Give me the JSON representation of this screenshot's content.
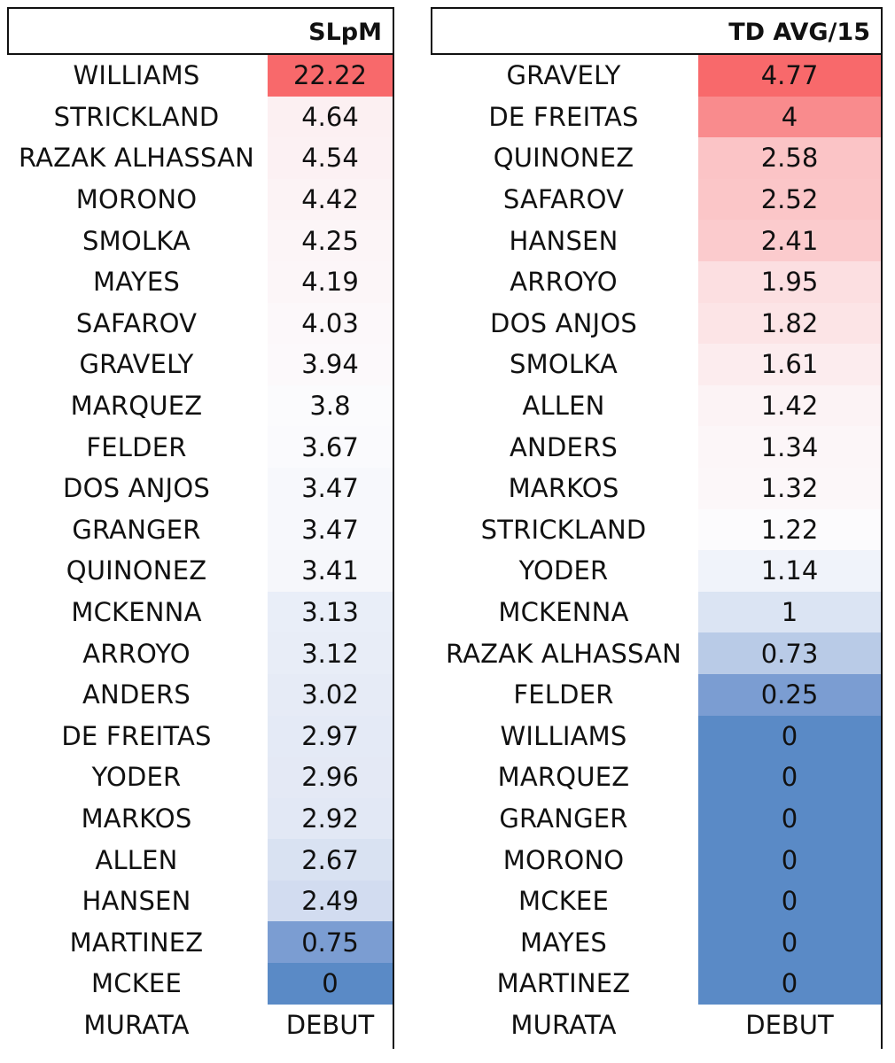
{
  "left_table": {
    "header": "SLpM",
    "rows": [
      {
        "name": "WILLIAMS",
        "value": "22.22",
        "color": "#f8696b"
      },
      {
        "name": "STRICKLAND",
        "value": "4.64",
        "color": "#fcf0f2"
      },
      {
        "name": "RAZAK ALHASSAN",
        "value": "4.54",
        "color": "#fcf1f3"
      },
      {
        "name": "MORONO",
        "value": "4.42",
        "color": "#fcf3f5"
      },
      {
        "name": "SMOLKA",
        "value": "4.25",
        "color": "#fcf5f7"
      },
      {
        "name": "MAYES",
        "value": "4.19",
        "color": "#fcf6f8"
      },
      {
        "name": "SAFAROV",
        "value": "4.03",
        "color": "#fcf8fa"
      },
      {
        "name": "GRAVELY",
        "value": "3.94",
        "color": "#fcf9fb"
      },
      {
        "name": "MARQUEZ",
        "value": "3.8",
        "color": "#fbfbfd"
      },
      {
        "name": "FELDER",
        "value": "3.67",
        "color": "#fafafd"
      },
      {
        "name": "DOS ANJOS",
        "value": "3.47",
        "color": "#f7f8fc"
      },
      {
        "name": "GRANGER",
        "value": "3.47",
        "color": "#f7f8fc"
      },
      {
        "name": "QUINONEZ",
        "value": "3.41",
        "color": "#f6f7fb"
      },
      {
        "name": "MCKENNA",
        "value": "3.13",
        "color": "#e9eef8"
      },
      {
        "name": "ARROYO",
        "value": "3.12",
        "color": "#e8edf7"
      },
      {
        "name": "ANDERS",
        "value": "3.02",
        "color": "#e6ebf6"
      },
      {
        "name": "DE FREITAS",
        "value": "2.97",
        "color": "#e4eaf6"
      },
      {
        "name": "YODER",
        "value": "2.96",
        "color": "#e4e9f5"
      },
      {
        "name": "MARKOS",
        "value": "2.92",
        "color": "#e2e8f5"
      },
      {
        "name": "ALLEN",
        "value": "2.67",
        "color": "#d9e2f2"
      },
      {
        "name": "HANSEN",
        "value": "2.49",
        "color": "#d2dcf0"
      },
      {
        "name": "MARTINEZ",
        "value": "0.75",
        "color": "#7b9dd2"
      },
      {
        "name": "MCKEE",
        "value": "0",
        "color": "#5a8ac6"
      },
      {
        "name": "MURATA",
        "value": "DEBUT",
        "color": "#ffffff"
      }
    ]
  },
  "right_table": {
    "header": "TD AVG/15",
    "rows": [
      {
        "name": "GRAVELY",
        "value": "4.77",
        "color": "#f8696b"
      },
      {
        "name": "DE FREITAS",
        "value": "4",
        "color": "#f98b8d"
      },
      {
        "name": "QUINONEZ",
        "value": "2.58",
        "color": "#fbc4c6"
      },
      {
        "name": "SAFAROV",
        "value": "2.52",
        "color": "#fbc6c8"
      },
      {
        "name": "HANSEN",
        "value": "2.41",
        "color": "#fbcbcd"
      },
      {
        "name": "ARROYO",
        "value": "1.95",
        "color": "#fcdfe1"
      },
      {
        "name": "DOS ANJOS",
        "value": "1.82",
        "color": "#fce4e6"
      },
      {
        "name": "SMOLKA",
        "value": "1.61",
        "color": "#fcecee"
      },
      {
        "name": "ALLEN",
        "value": "1.42",
        "color": "#fcf3f5"
      },
      {
        "name": "ANDERS",
        "value": "1.34",
        "color": "#fcf6f8"
      },
      {
        "name": "MARKOS",
        "value": "1.32",
        "color": "#fcf7f9"
      },
      {
        "name": "STRICKLAND",
        "value": "1.22",
        "color": "#fcfbfd"
      },
      {
        "name": "YODER",
        "value": "1.14",
        "color": "#f0f3fa"
      },
      {
        "name": "MCKENNA",
        "value": "1",
        "color": "#dbe4f3"
      },
      {
        "name": "RAZAK ALHASSAN",
        "value": "0.73",
        "color": "#b9cbe7"
      },
      {
        "name": "FELDER",
        "value": "0.25",
        "color": "#7b9dd2"
      },
      {
        "name": "WILLIAMS",
        "value": "0",
        "color": "#5a8ac6"
      },
      {
        "name": "MARQUEZ",
        "value": "0",
        "color": "#5a8ac6"
      },
      {
        "name": "GRANGER",
        "value": "0",
        "color": "#5a8ac6"
      },
      {
        "name": "MORONO",
        "value": "0",
        "color": "#5a8ac6"
      },
      {
        "name": "MCKEE",
        "value": "0",
        "color": "#5a8ac6"
      },
      {
        "name": "MAYES",
        "value": "0",
        "color": "#5a8ac6"
      },
      {
        "name": "MARTINEZ",
        "value": "0",
        "color": "#5a8ac6"
      },
      {
        "name": "MURATA",
        "value": "DEBUT",
        "color": "#ffffff"
      }
    ]
  }
}
